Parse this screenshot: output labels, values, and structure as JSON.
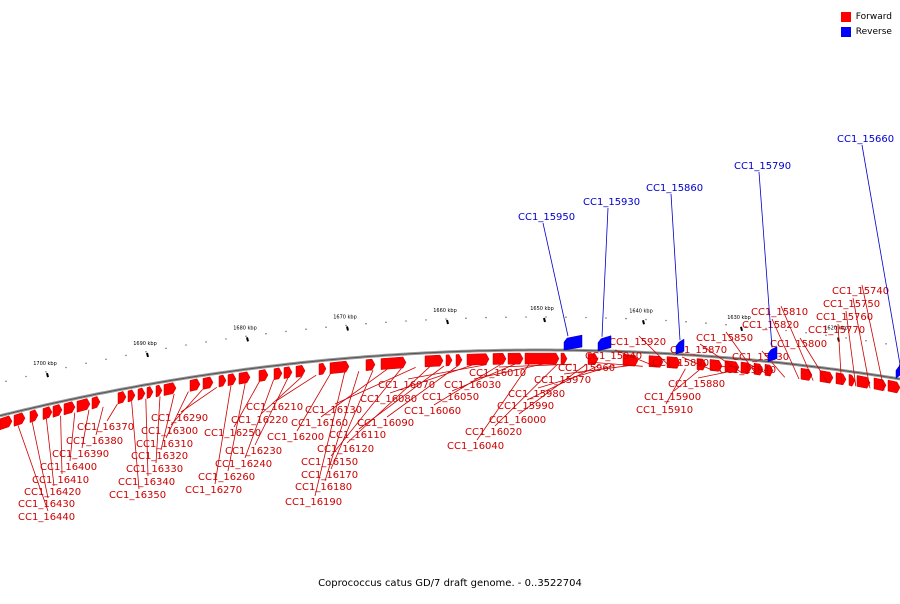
{
  "caption": "Coprococcus catus GD/7 draft genome. - 0..3522704",
  "legend": [
    {
      "label": "Forward",
      "color": "#ff0000"
    },
    {
      "label": "Reverse",
      "color": "#0000ff"
    }
  ],
  "colors": {
    "forward": "#ff0000",
    "reverse": "#0000ff",
    "backbone": "#888888",
    "label_forward": "#cc0000",
    "label_reverse": "#0000cc"
  },
  "scale_labels": [
    "1700 kbp",
    "1690 kbp",
    "1680 kbp",
    "1670 kbp",
    "1660 kbp",
    "1650 kbp",
    "1640 kbp",
    "1630 kbp",
    "1620 kbp"
  ],
  "forward_genes": [
    "CC1_16440",
    "CC1_16430",
    "CC1_16420",
    "CC1_16410",
    "CC1_16400",
    "CC1_16390",
    "CC1_16380",
    "CC1_16370",
    "CC1_16350",
    "CC1_16340",
    "CC1_16330",
    "CC1_16320",
    "CC1_16310",
    "CC1_16300",
    "CC1_16290",
    "CC1_16270",
    "CC1_16260",
    "CC1_16250",
    "CC1_16240",
    "CC1_16230",
    "CC1_16220",
    "CC1_16210",
    "CC1_16200",
    "CC1_16190",
    "CC1_16180",
    "CC1_16170",
    "CC1_16160",
    "CC1_16150",
    "CC1_16130",
    "CC1_16120",
    "CC1_16110",
    "CC1_16090",
    "CC1_16080",
    "CC1_16070",
    "CC1_16060",
    "CC1_16050",
    "CC1_16040",
    "CC1_16030",
    "CC1_16020",
    "CC1_16010",
    "CC1_16000",
    "CC1_15990",
    "CC1_15980",
    "CC1_15970",
    "CC1_15960",
    "CC1_15940",
    "CC1_15920",
    "CC1_15910",
    "CC1_15900",
    "CC1_15890",
    "CC1_15880",
    "CC1_15870",
    "CC1_15850",
    "CC1_15840",
    "CC1_15830",
    "CC1_15820",
    "CC1_15810",
    "CC1_15800",
    "CC1_15770",
    "CC1_15760",
    "CC1_15750",
    "CC1_15740"
  ],
  "reverse_genes": [
    "CC1_15950",
    "CC1_15930",
    "CC1_15860",
    "CC1_15790",
    "CC1_15660"
  ]
}
